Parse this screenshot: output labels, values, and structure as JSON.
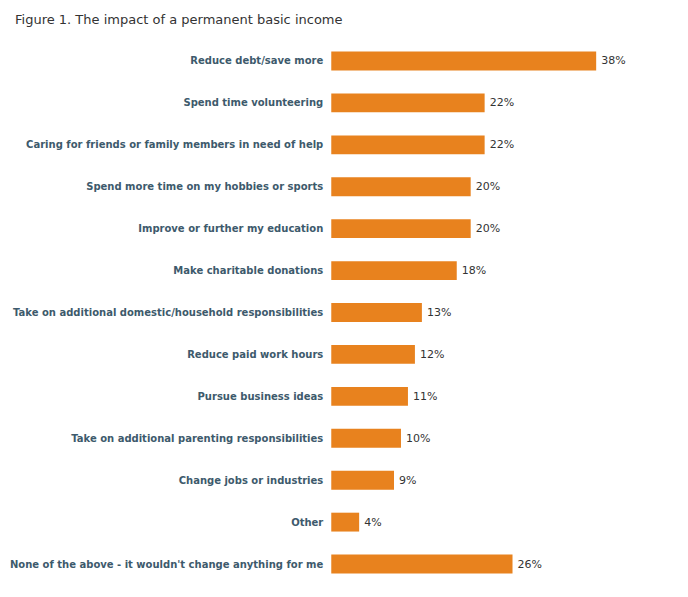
{
  "chart_data": {
    "type": "bar",
    "orientation": "horizontal",
    "title": "Figure 1. The impact of a permanent basic income",
    "categories": [
      "Reduce debt/save more",
      "Spend time volunteering",
      "Caring for friends or family members in need of help",
      "Spend more time on my hobbies or sports",
      "Improve or further my education",
      "Make charitable donations",
      "Take on additional domestic/household responsibilities",
      "Reduce paid work hours",
      "Pursue business ideas",
      "Take on additional parenting responsibilities",
      "Change jobs or industries",
      "Other",
      "None of the above - it wouldn't change anything for me"
    ],
    "values": [
      38,
      22,
      22,
      20,
      20,
      18,
      13,
      12,
      11,
      10,
      9,
      4,
      26
    ],
    "value_labels": [
      "38%",
      "22%",
      "22%",
      "20%",
      "20%",
      "18%",
      "13%",
      "12%",
      "11%",
      "10%",
      "9%",
      "4%",
      "26%"
    ],
    "color": "#E8821E",
    "xlim": [
      0,
      44
    ],
    "data_labels": true,
    "tick_labels": "y",
    "grid": false
  }
}
